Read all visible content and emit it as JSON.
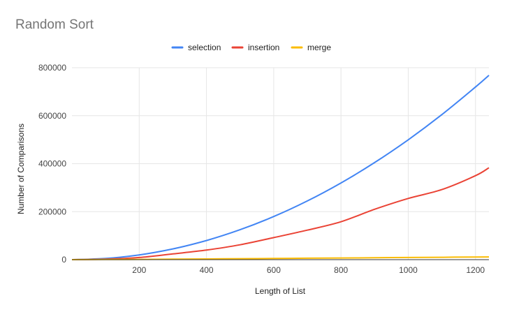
{
  "chart_data": {
    "type": "line",
    "title": "Random Sort",
    "xlabel": "Length of List",
    "ylabel": "Number of Comparisons",
    "xlim": [
      0,
      1240
    ],
    "ylim": [
      0,
      800000
    ],
    "xticks": [
      200,
      400,
      600,
      800,
      1000,
      1200
    ],
    "yticks": [
      0,
      200000,
      400000,
      600000,
      800000
    ],
    "x_tick_labels": [
      "200",
      "400",
      "600",
      "800",
      "1000",
      "1200"
    ],
    "y_tick_labels": [
      "0",
      "200000",
      "400000",
      "600000",
      "800000"
    ],
    "grid": true,
    "legend_position": "top",
    "x": [
      0,
      100,
      200,
      300,
      400,
      500,
      600,
      700,
      800,
      900,
      1000,
      1100,
      1200,
      1240
    ],
    "series": [
      {
        "name": "selection",
        "color": "#4285f4",
        "values": [
          0,
          4950,
          19900,
          44850,
          79800,
          124750,
          179700,
          244650,
          319600,
          404550,
          499500,
          604450,
          719400,
          768180
        ]
      },
      {
        "name": "insertion",
        "color": "#ea4335",
        "values": [
          0,
          2000,
          9000,
          24000,
          40000,
          62000,
          92000,
          123000,
          158000,
          210000,
          255000,
          292000,
          350000,
          383000
        ]
      },
      {
        "name": "merge",
        "color": "#fbbc04",
        "values": [
          0,
          500,
          1300,
          2100,
          3000,
          4000,
          5000,
          6000,
          7000,
          8000,
          9000,
          10000,
          11000,
          11300
        ]
      }
    ]
  }
}
